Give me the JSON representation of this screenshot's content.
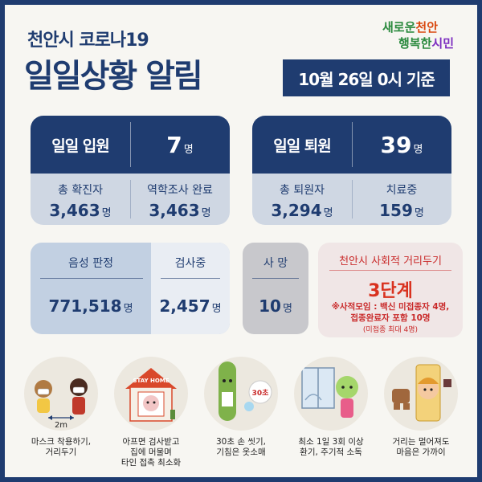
{
  "header": {
    "subtitle": "천안시 코로나19",
    "title": "일일상황 알림",
    "date_badge": "10월 26일 0시 기준",
    "logo_line1_a": "새로운",
    "logo_line1_b": "천안",
    "logo_line2_a": "행복한",
    "logo_line2_b": "시민"
  },
  "admission": {
    "label": "일일 입원",
    "count": "7",
    "unit": "명",
    "total_confirmed_label": "총 확진자",
    "total_confirmed": "3,463",
    "epi_done_label": "역학조사 완료",
    "epi_done": "3,463"
  },
  "discharge": {
    "label": "일일 퇴원",
    "count": "39",
    "unit": "명",
    "total_discharged_label": "총 퇴원자",
    "total_discharged": "3,294",
    "in_treatment_label": "치료중",
    "in_treatment": "159"
  },
  "tests": {
    "negative_label": "음성 판정",
    "negative": "771,518",
    "testing_label": "검사중",
    "testing": "2,457",
    "unit": "명"
  },
  "deaths": {
    "label": "사 망",
    "count": "10",
    "unit": "명"
  },
  "distancing": {
    "title": "천안시 사회적 거리두기",
    "level": "3단계",
    "note_line1": "※사적모임 : 백신 미접종자 4명,",
    "note_line2": "접종완료자 포함 10명",
    "note_line3": "(미접종 최대 4명)"
  },
  "tips": [
    {
      "caption": "마스크 착용하기,\n거리두기",
      "badge": "2m"
    },
    {
      "caption": "아프면 검사받고\n집에 머물며\n타인 접촉 최소화",
      "badge": "STAY HOME"
    },
    {
      "caption": "30초 손 씻기,\n기침은 옷소매",
      "badge": "30초"
    },
    {
      "caption": "최소 1일 3회 이상\n환기, 주기적 소독",
      "badge": ""
    },
    {
      "caption": "거리는 멀어져도\n마음은 가까이",
      "badge": ""
    }
  ],
  "colors": {
    "navy": "#1f3c70",
    "light_blue": "#cfd7e3",
    "red": "#d9321f",
    "background": "#f7f6f2"
  }
}
